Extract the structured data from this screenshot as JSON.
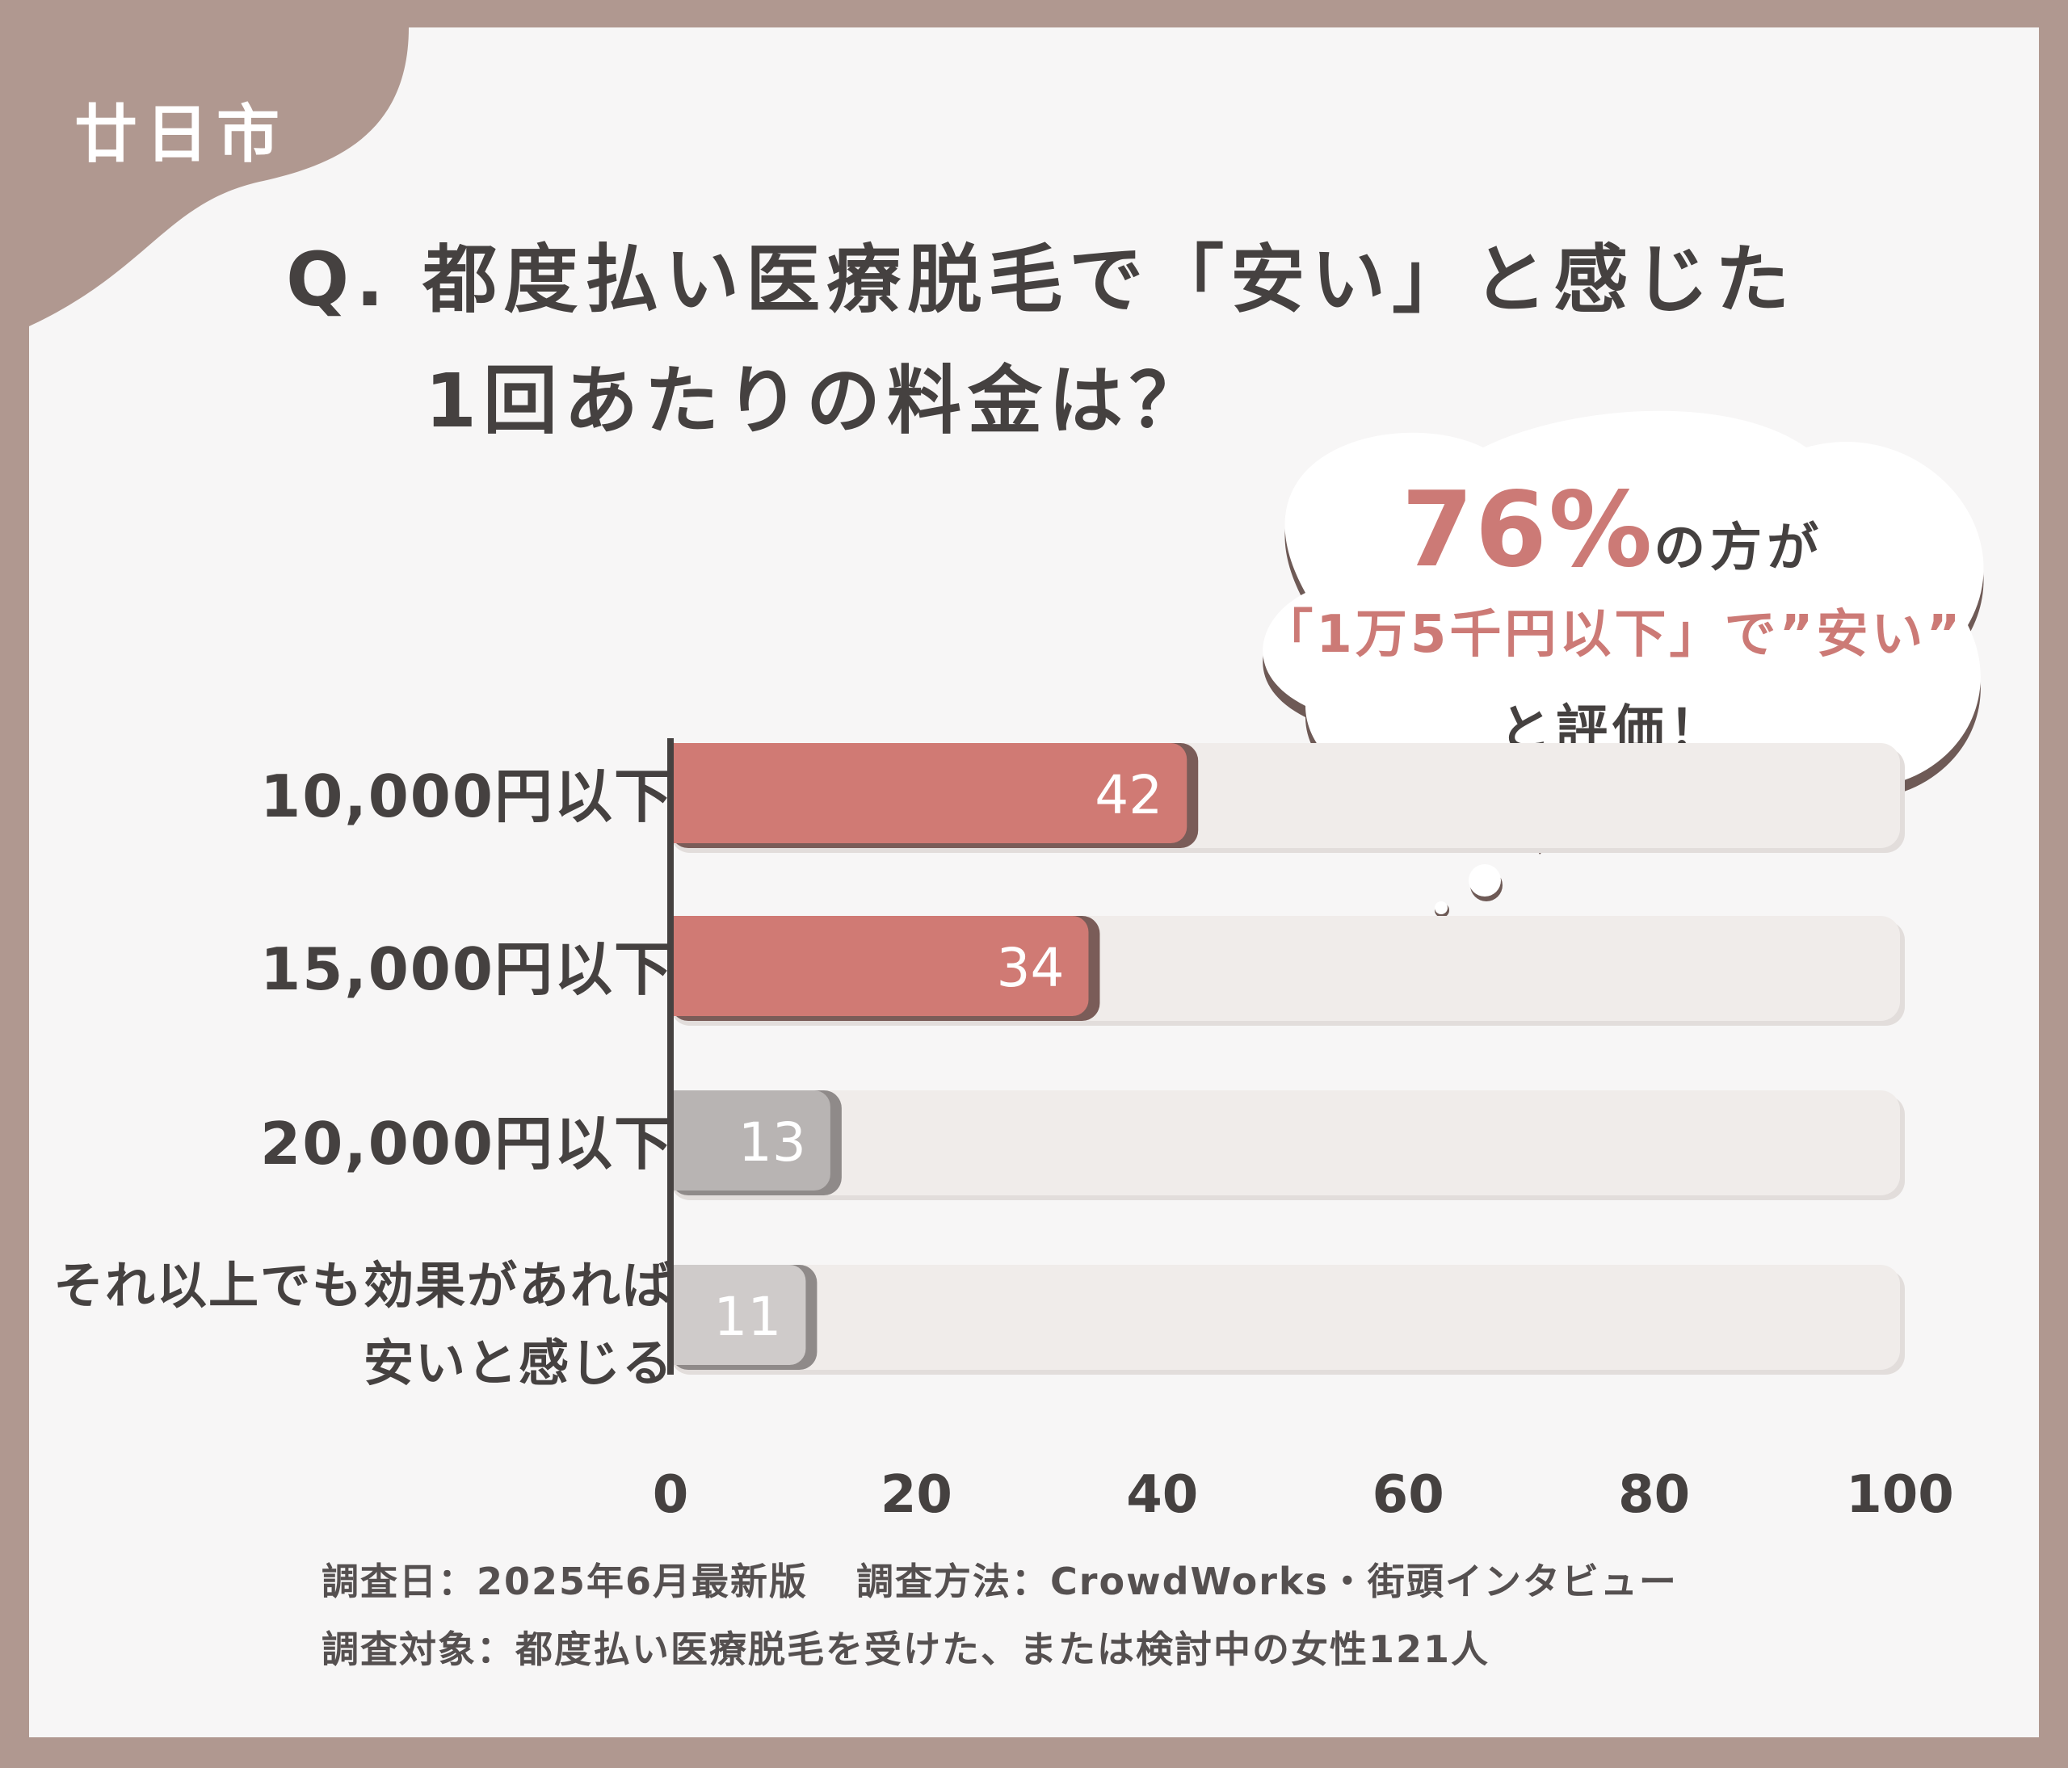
{
  "header": {
    "city_tag": "廿日市",
    "question_line1": "Q. 都度払い医療脱毛で「安い」と感じた",
    "question_line2": "1回あたりの料金は？"
  },
  "callout": {
    "percent": "76%",
    "line1_rest": "の方が",
    "line2": "「1万5千円以下」で”安い”",
    "line3": "と評価！"
  },
  "chart_data": {
    "type": "bar",
    "orientation": "horizontal",
    "categories": [
      "10,000円以下",
      "15,000円以下",
      "20,000円以下",
      "それ以上でも効果があれば\n安いと感じる"
    ],
    "values": [
      42,
      34,
      13,
      11
    ],
    "xlim": [
      0,
      100
    ],
    "xticks": [
      0,
      20,
      40,
      60,
      80,
      100
    ],
    "title": "",
    "xlabel": "",
    "ylabel": "",
    "grid": false,
    "colors": {
      "highlight": "#d07a74",
      "highlight_shadow": "#7a5c58",
      "gray": "#b8b4b3",
      "light_gray": "#cfcbca",
      "track": "#f0ecea",
      "label_text": "#454140"
    },
    "bar_styles": [
      "highlight",
      "highlight",
      "gray",
      "light_gray"
    ]
  },
  "footer": {
    "line1_date": "調査日：2025年6月最新版",
    "line1_method": "調査方法：CrowdWorks・街頭インタビュー",
    "line2": "調査対象：都度払い医療脱毛を受けた、または検討中の女性121人"
  },
  "theme": {
    "frame": "#b09890",
    "card": "#f7f6f6",
    "tab": "#b09890"
  }
}
